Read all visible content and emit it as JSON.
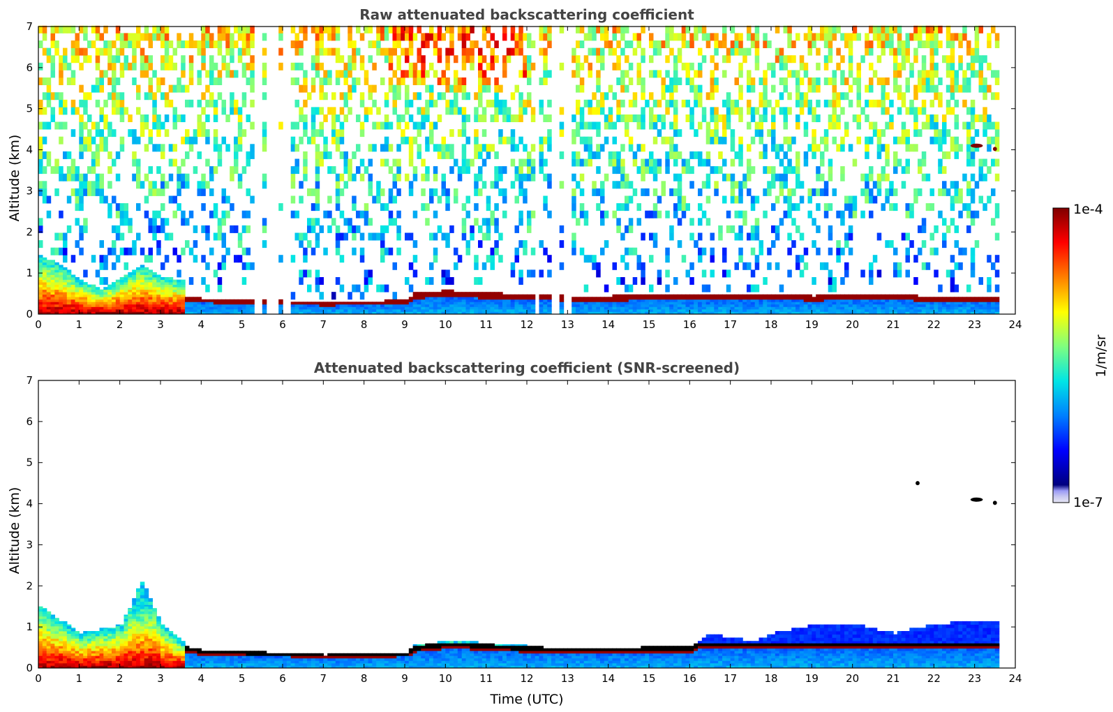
{
  "figure": {
    "colormap": [
      "#00007f",
      "#0000ff",
      "#007fff",
      "#00e5e5",
      "#7fff7f",
      "#ffff00",
      "#ff7f00",
      "#ff0000",
      "#7f0000"
    ],
    "colorbar": {
      "label": "1/m/sr",
      "min_label": "1e-7",
      "max_label": "1e-4",
      "scale": "log"
    }
  },
  "chart_data": [
    {
      "type": "heatmap",
      "title": "Raw attenuated backscattering coefficient",
      "xlabel": "",
      "ylabel": "Altitude (km)",
      "xlim": [
        0,
        24
      ],
      "ylim": [
        0,
        7
      ],
      "xticks": [
        0,
        1,
        2,
        3,
        4,
        5,
        6,
        7,
        8,
        9,
        10,
        11,
        12,
        13,
        14,
        15,
        16,
        17,
        18,
        19,
        20,
        21,
        22,
        23,
        24
      ],
      "yticks": [
        0,
        1,
        2,
        3,
        4,
        5,
        6,
        7
      ],
      "data_end_time": 23.6,
      "data_gaps": [
        [
          5.35,
          5.45
        ],
        [
          5.65,
          5.9
        ],
        [
          6.05,
          6.2
        ],
        [
          12.25,
          12.35
        ],
        [
          12.65,
          12.8
        ],
        [
          12.9,
          13.1
        ]
      ],
      "boundary_layer_top_km": [
        [
          0,
          1.4
        ],
        [
          0.5,
          1.2
        ],
        [
          1,
          0.8
        ],
        [
          1.5,
          0.6
        ],
        [
          2,
          0.9
        ],
        [
          2.5,
          1.2
        ],
        [
          3,
          0.9
        ],
        [
          3.5,
          0.8
        ],
        [
          3.6,
          0.4
        ],
        [
          4,
          0.35
        ],
        [
          5,
          0.32
        ],
        [
          6,
          0.3
        ],
        [
          7,
          0.25
        ],
        [
          8,
          0.28
        ],
        [
          9,
          0.32
        ],
        [
          9.2,
          0.5
        ],
        [
          10,
          0.55
        ],
        [
          11,
          0.5
        ],
        [
          12,
          0.45
        ],
        [
          13,
          0.42
        ],
        [
          14,
          0.42
        ],
        [
          15,
          0.44
        ],
        [
          16,
          0.45
        ],
        [
          17,
          0.48
        ],
        [
          18,
          0.45
        ],
        [
          19,
          0.42
        ],
        [
          20,
          0.45
        ],
        [
          21,
          0.45
        ],
        [
          22,
          0.4
        ],
        [
          23,
          0.4
        ],
        [
          23.6,
          0.4
        ]
      ],
      "cloud_features": [
        {
          "time_start": 22.9,
          "time_end": 23.2,
          "altitude_km": 4.1
        },
        {
          "time_start": 23.45,
          "time_end": 23.55,
          "altitude_km": 4.02
        }
      ]
    },
    {
      "type": "heatmap",
      "title": "Attenuated backscattering coefficient (SNR-screened)",
      "xlabel": "Time (UTC)",
      "ylabel": "Altitude (km)",
      "xlim": [
        0,
        24
      ],
      "ylim": [
        0,
        7
      ],
      "xticks": [
        0,
        1,
        2,
        3,
        4,
        5,
        6,
        7,
        8,
        9,
        10,
        11,
        12,
        13,
        14,
        15,
        16,
        17,
        18,
        19,
        20,
        21,
        22,
        23,
        24
      ],
      "yticks": [
        0,
        1,
        2,
        3,
        4,
        5,
        6,
        7
      ],
      "data_end_time": 23.6,
      "mixing_layer_top_km": [
        [
          0,
          1.45
        ],
        [
          1,
          0.8
        ],
        [
          2,
          1.0
        ],
        [
          2.5,
          2.1
        ],
        [
          3,
          1.0
        ],
        [
          3.6,
          0.5
        ],
        [
          4,
          0.4
        ],
        [
          6,
          0.35
        ],
        [
          7,
          0.3
        ],
        [
          9,
          0.35
        ],
        [
          9.2,
          0.5
        ],
        [
          10.2,
          0.65
        ],
        [
          11,
          0.55
        ],
        [
          13,
          0.45
        ],
        [
          16,
          0.5
        ],
        [
          16.5,
          0.8
        ],
        [
          17.5,
          0.6
        ],
        [
          18,
          0.8
        ],
        [
          19,
          1.0
        ],
        [
          20,
          1.05
        ],
        [
          21,
          0.8
        ],
        [
          22,
          1.05
        ],
        [
          23.6,
          1.1
        ]
      ],
      "cloud_features": [
        {
          "time_start": 22.9,
          "time_end": 23.2,
          "altitude_km": 4.1
        },
        {
          "time_start": 23.45,
          "time_end": 23.55,
          "altitude_km": 4.02
        },
        {
          "time_start": 21.55,
          "time_end": 21.65,
          "altitude_km": 4.5
        }
      ]
    }
  ]
}
